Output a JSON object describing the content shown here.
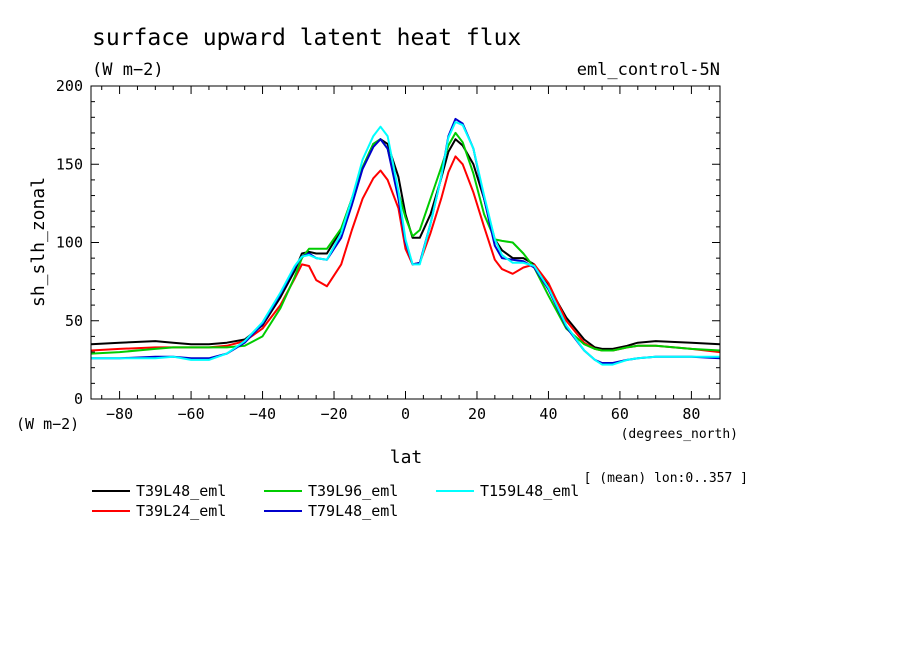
{
  "chart_data": {
    "type": "line",
    "title": "surface upward latent heat flux",
    "subtitle": "(W m−2)",
    "experiment": "eml_control-5N",
    "ylabel": "sh_slh_zonal",
    "yunit": "(W m−2)",
    "xlabel": "lat",
    "xunit": "(degrees_north)",
    "footnote": "[ (mean) lon:0..357 ]",
    "xlim": [
      -88,
      88
    ],
    "ylim": [
      0,
      200
    ],
    "xticks": [
      -80,
      -60,
      -40,
      -20,
      0,
      20,
      40,
      60,
      80
    ],
    "xtick_labels": [
      "−80",
      "−60",
      "−40",
      "−20",
      "0",
      "20",
      "40",
      "60",
      "80"
    ],
    "yticks": [
      0,
      50,
      100,
      150,
      200
    ],
    "ytick_labels": [
      "0",
      "50",
      "100",
      "150",
      "200"
    ],
    "x": [
      -88,
      -80,
      -70,
      -65,
      -60,
      -55,
      -50,
      -45,
      -40,
      -35,
      -31,
      -29,
      -27,
      -25,
      -22,
      -18,
      -15,
      -12,
      -9,
      -7,
      -5,
      -2,
      0,
      2,
      4,
      7,
      10,
      12,
      14,
      16,
      19,
      22,
      25,
      27,
      30,
      33,
      36,
      40,
      45,
      50,
      53,
      55,
      58,
      62,
      65,
      70,
      80,
      88
    ],
    "series": [
      {
        "name": "T39L48_eml",
        "color": "#000000",
        "values": [
          35,
          36,
          37,
          36,
          35,
          35,
          36,
          38,
          47,
          65,
          82,
          93,
          94,
          93,
          93,
          108,
          128,
          148,
          163,
          166,
          163,
          142,
          118,
          103,
          103,
          118,
          141,
          158,
          166,
          162,
          150,
          128,
          102,
          95,
          90,
          90,
          86,
          72,
          52,
          38,
          33,
          32,
          32,
          34,
          36,
          37,
          36,
          35
        ]
      },
      {
        "name": "T39L24_eml",
        "color": "#ff0000",
        "values": [
          31,
          32,
          33,
          33,
          33,
          33,
          34,
          37,
          45,
          60,
          77,
          86,
          85,
          76,
          72,
          86,
          108,
          128,
          141,
          146,
          140,
          122,
          96,
          86,
          87,
          106,
          128,
          145,
          155,
          150,
          132,
          110,
          89,
          83,
          80,
          84,
          86,
          74,
          50,
          36,
          32,
          31,
          31,
          33,
          34,
          34,
          32,
          30
        ]
      },
      {
        "name": "T39L96_eml",
        "color": "#00cc00",
        "values": [
          29,
          30,
          32,
          33,
          33,
          33,
          33,
          34,
          40,
          58,
          78,
          90,
          96,
          96,
          96,
          109,
          128,
          148,
          163,
          166,
          160,
          132,
          116,
          104,
          108,
          128,
          148,
          162,
          170,
          164,
          144,
          118,
          102,
          101,
          100,
          93,
          84,
          66,
          45,
          35,
          32,
          31,
          31,
          33,
          34,
          34,
          32,
          31
        ]
      },
      {
        "name": "T79L48_eml",
        "color": "#0000cc",
        "values": [
          26,
          26,
          27,
          27,
          26,
          26,
          29,
          36,
          48,
          67,
          84,
          91,
          93,
          90,
          89,
          103,
          124,
          147,
          161,
          166,
          160,
          128,
          100,
          86,
          87,
          112,
          142,
          168,
          179,
          176,
          160,
          128,
          98,
          90,
          89,
          88,
          84,
          70,
          46,
          31,
          25,
          23,
          23,
          25,
          26,
          27,
          27,
          26
        ]
      },
      {
        "name": "T159L48_eml",
        "color": "#00ffff",
        "values": [
          26,
          26,
          26,
          27,
          25,
          25,
          29,
          37,
          49,
          68,
          85,
          91,
          92,
          90,
          89,
          106,
          128,
          153,
          168,
          174,
          168,
          133,
          102,
          86,
          86,
          112,
          142,
          167,
          177,
          175,
          160,
          130,
          102,
          92,
          87,
          87,
          85,
          71,
          47,
          31,
          25,
          22,
          22,
          25,
          26,
          27,
          27,
          27
        ]
      }
    ]
  }
}
